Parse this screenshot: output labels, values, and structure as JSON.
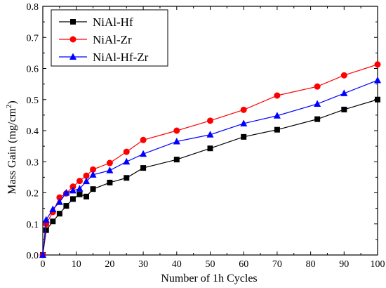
{
  "chart_data": {
    "type": "line",
    "xlabel": "Number of 1h Cycles",
    "ylabel": "Mass Gain (mg/cm",
    "ylabel_sup": "2",
    "ylabel_end": ")",
    "xlim": [
      0,
      100
    ],
    "ylim": [
      0,
      0.8
    ],
    "xticks": [
      0,
      10,
      20,
      30,
      40,
      50,
      60,
      70,
      80,
      90,
      100
    ],
    "yticks": [
      0.0,
      0.1,
      0.2,
      0.3,
      0.4,
      0.5,
      0.6,
      0.7,
      0.8
    ],
    "grid": false,
    "legend_position": "top-left",
    "series": [
      {
        "name": "NiAl-Hf",
        "color": "#000000",
        "marker": "square",
        "x": [
          0,
          1,
          3,
          5,
          7,
          9,
          11,
          13,
          15,
          20,
          25,
          30,
          40,
          50,
          60,
          70,
          82,
          90,
          100
        ],
        "y": [
          0.0,
          0.08,
          0.108,
          0.133,
          0.158,
          0.18,
          0.195,
          0.188,
          0.212,
          0.233,
          0.248,
          0.28,
          0.307,
          0.343,
          0.38,
          0.403,
          0.437,
          0.468,
          0.5
        ]
      },
      {
        "name": "NiAl-Zr",
        "color": "#ff0000",
        "marker": "circle",
        "x": [
          0,
          1,
          3,
          5,
          7,
          9,
          11,
          13,
          15,
          20,
          25,
          30,
          40,
          50,
          60,
          70,
          82,
          90,
          100
        ],
        "y": [
          0.0,
          0.1,
          0.138,
          0.185,
          0.198,
          0.22,
          0.238,
          0.255,
          0.275,
          0.296,
          0.332,
          0.37,
          0.4,
          0.432,
          0.467,
          0.513,
          0.542,
          0.578,
          0.613
        ]
      },
      {
        "name": "NiAl-Hf-Zr",
        "color": "#0000ff",
        "marker": "triangle",
        "x": [
          0,
          1,
          3,
          5,
          7,
          9,
          11,
          13,
          15,
          20,
          25,
          30,
          40,
          50,
          60,
          70,
          82,
          90,
          100
        ],
        "y": [
          0.0,
          0.113,
          0.147,
          0.17,
          0.2,
          0.207,
          0.213,
          0.237,
          0.258,
          0.272,
          0.3,
          0.325,
          0.365,
          0.387,
          0.423,
          0.448,
          0.486,
          0.52,
          0.562
        ]
      }
    ]
  }
}
